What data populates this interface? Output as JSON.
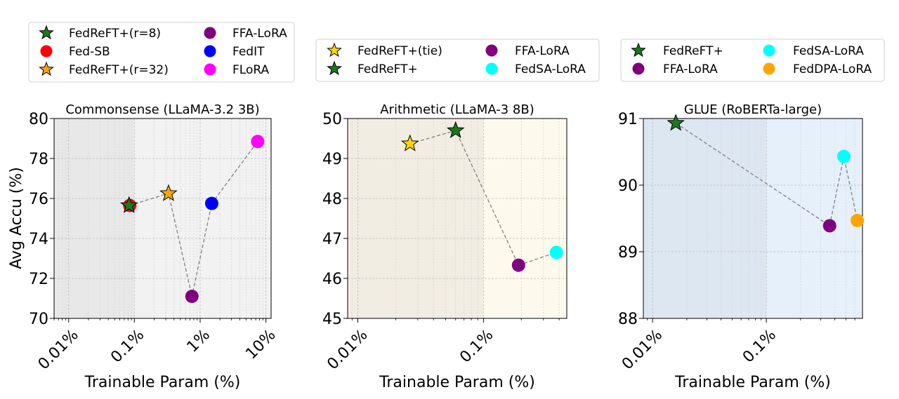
{
  "chart_data": [
    {
      "type": "scatter",
      "title": "Commonsense (LLaMA-3.2 3B)",
      "xlabel": "Trainable Param (%)",
      "ylabel": "Avg Accu (%)",
      "xscale": "log",
      "xlim": [
        0.006,
        12
      ],
      "ylim": [
        70,
        80
      ],
      "xticks": [
        {
          "value": 0.01,
          "label": "0.01%"
        },
        {
          "value": 0.1,
          "label": "0.1%"
        },
        {
          "value": 1,
          "label": "1%"
        },
        {
          "value": 10,
          "label": "10%"
        }
      ],
      "yticks": [
        {
          "value": 70,
          "label": "70"
        },
        {
          "value": 72,
          "label": "72"
        },
        {
          "value": 74,
          "label": "74"
        },
        {
          "value": 76,
          "label": "76"
        },
        {
          "value": 78,
          "label": "78"
        },
        {
          "value": 80,
          "label": "80"
        }
      ],
      "shaded_regions": [
        {
          "x": [
            0.006,
            0.1
          ],
          "color": "#e8e8e8"
        },
        {
          "x": [
            0.1,
            12
          ],
          "color": "#f2f2f2"
        }
      ],
      "grid": true,
      "legend_position": "top-left",
      "legend_columns": 2,
      "legend": [
        {
          "name": "FedReFT+(r=8)",
          "marker": "star",
          "color": "#1a7a1a"
        },
        {
          "name": "Fed-SB",
          "marker": "circle",
          "color": "#ff0000"
        },
        {
          "name": "FedReFT+(r=32)",
          "marker": "star",
          "color": "#ffa500"
        },
        {
          "name": "FFA-LoRA",
          "marker": "circle",
          "color": "#800080"
        },
        {
          "name": "FedIT",
          "marker": "circle",
          "color": "#0000ff"
        },
        {
          "name": "FLoRA",
          "marker": "circle",
          "color": "#ff00ff"
        }
      ],
      "points": [
        {
          "name": "Fed-SB",
          "x": 0.085,
          "y": 75.65,
          "marker": "circle",
          "color": "#ff0000"
        },
        {
          "name": "FedReFT+(r=8)",
          "x": 0.083,
          "y": 75.65,
          "marker": "star",
          "color": "#1a7a1a"
        },
        {
          "name": "FedReFT+(r=32)",
          "x": 0.33,
          "y": 76.25,
          "marker": "star",
          "color": "#ffa500"
        },
        {
          "name": "FFA-LoRA",
          "x": 0.75,
          "y": 71.1,
          "marker": "circle",
          "color": "#800080"
        },
        {
          "name": "FedIT",
          "x": 1.5,
          "y": 75.75,
          "marker": "circle",
          "color": "#0000ff"
        },
        {
          "name": "FLoRA",
          "x": 7.5,
          "y": 78.85,
          "marker": "circle",
          "color": "#ff00ff"
        }
      ],
      "connector": [
        "FedReFT+(r=8)",
        "FedReFT+(r=32)",
        "FFA-LoRA",
        "FedIT",
        "FLoRA"
      ]
    },
    {
      "type": "scatter",
      "title": "Arithmetic (LLaMA-3 8B)",
      "xlabel": "Trainable Param (%)",
      "ylabel": "",
      "xscale": "log",
      "xlim": [
        0.0083,
        0.46
      ],
      "ylim": [
        45,
        50
      ],
      "xticks": [
        {
          "value": 0.01,
          "label": "0.01%"
        },
        {
          "value": 0.1,
          "label": "0.1%"
        }
      ],
      "yticks": [
        {
          "value": 45,
          "label": "45"
        },
        {
          "value": 46,
          "label": "46"
        },
        {
          "value": 47,
          "label": "47"
        },
        {
          "value": 48,
          "label": "48"
        },
        {
          "value": 49,
          "label": "49"
        },
        {
          "value": 50,
          "label": "50"
        }
      ],
      "shaded_regions": [
        {
          "x": [
            0.0083,
            0.1
          ],
          "color": "#f2ede3"
        },
        {
          "x": [
            0.1,
            0.46
          ],
          "color": "#fdf9ec"
        }
      ],
      "grid": true,
      "legend_position": "top-center",
      "legend_columns": 2,
      "legend": [
        {
          "name": "FedReFT+(tie)",
          "marker": "star",
          "color": "#ffd700"
        },
        {
          "name": "FedReFT+",
          "marker": "star",
          "color": "#1a7a1a"
        },
        {
          "name": "FFA-LoRA",
          "marker": "circle",
          "color": "#800080"
        },
        {
          "name": "FedSA-LoRA",
          "marker": "circle",
          "color": "#00ffff"
        }
      ],
      "points": [
        {
          "name": "FedReFT+(tie)",
          "x": 0.026,
          "y": 49.37,
          "marker": "star",
          "color": "#ffd700"
        },
        {
          "name": "FedReFT+",
          "x": 0.06,
          "y": 49.7,
          "marker": "star",
          "color": "#1a7a1a"
        },
        {
          "name": "FFA-LoRA",
          "x": 0.19,
          "y": 46.33,
          "marker": "circle",
          "color": "#800080"
        },
        {
          "name": "FedSA-LoRA",
          "x": 0.38,
          "y": 46.65,
          "marker": "circle",
          "color": "#00ffff"
        }
      ],
      "connector": [
        "FedReFT+(tie)",
        "FedReFT+",
        "FFA-LoRA",
        "FedSA-LoRA"
      ]
    },
    {
      "type": "scatter",
      "title": "GLUE (RoBERTa-large)",
      "xlabel": "Trainable Param (%)",
      "ylabel": "",
      "xscale": "log",
      "xlim": [
        0.0083,
        0.7
      ],
      "ylim": [
        88,
        91
      ],
      "xticks": [
        {
          "value": 0.01,
          "label": "0.01%"
        },
        {
          "value": 0.1,
          "label": "0.1%"
        }
      ],
      "yticks": [
        {
          "value": 88,
          "label": "88"
        },
        {
          "value": 89,
          "label": "89"
        },
        {
          "value": 90,
          "label": "90"
        },
        {
          "value": 91,
          "label": "91"
        }
      ],
      "shaded_regions": [
        {
          "x": [
            0.0083,
            0.1
          ],
          "color": "#dde7f2"
        },
        {
          "x": [
            0.1,
            0.7
          ],
          "color": "#e6f0fb"
        }
      ],
      "grid": true,
      "legend_position": "top-right",
      "legend_columns": 2,
      "legend": [
        {
          "name": "FedReFT+",
          "marker": "star",
          "color": "#1a7a1a"
        },
        {
          "name": "FFA-LoRA",
          "marker": "circle",
          "color": "#800080"
        },
        {
          "name": "FedSA-LoRA",
          "marker": "circle",
          "color": "#00ffff"
        },
        {
          "name": "FedDPA-LoRA",
          "marker": "circle",
          "color": "#ffa500"
        }
      ],
      "points": [
        {
          "name": "FedReFT+",
          "x": 0.016,
          "y": 90.93,
          "marker": "star",
          "color": "#1a7a1a"
        },
        {
          "name": "FFA-LoRA",
          "x": 0.36,
          "y": 89.39,
          "marker": "circle",
          "color": "#800080"
        },
        {
          "name": "FedSA-LoRA",
          "x": 0.48,
          "y": 90.43,
          "marker": "circle",
          "color": "#00ffff"
        },
        {
          "name": "FedDPA-LoRA",
          "x": 0.63,
          "y": 89.47,
          "marker": "circle",
          "color": "#ffa500"
        }
      ],
      "connector": [
        "FedReFT+",
        "FFA-LoRA",
        "FedSA-LoRA",
        "FedDPA-LoRA"
      ]
    }
  ]
}
